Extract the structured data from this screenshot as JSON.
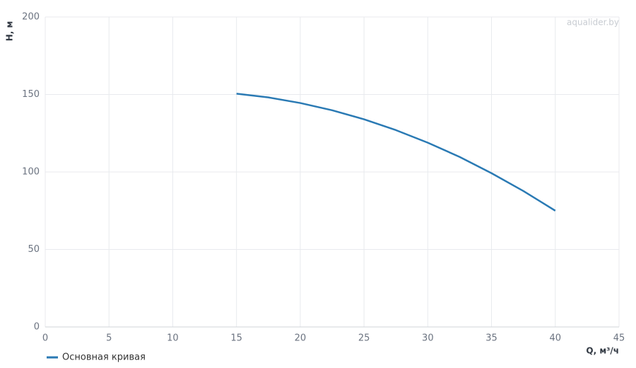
{
  "chart_data": {
    "type": "line",
    "x": [
      15,
      17.5,
      20,
      22.5,
      25,
      27.5,
      30,
      32.5,
      35,
      37.5,
      40
    ],
    "series": [
      {
        "name": "Основная кривая",
        "color": "#2a7ab4",
        "values": [
          150.5,
          148.1,
          144.5,
          139.8,
          134,
          127,
          118.9,
          109.7,
          99.2,
          87.7,
          75
        ]
      }
    ],
    "xlim": [
      0,
      45
    ],
    "xticks": [
      0,
      5,
      10,
      15,
      20,
      25,
      30,
      35,
      40,
      45
    ],
    "ylim": [
      0,
      200
    ],
    "yticks": [
      0,
      50,
      100,
      150,
      200
    ],
    "xlabel": "Q, м³/ч",
    "ylabel": "H, м",
    "watermark": "aqualider.by",
    "grid": true,
    "legend": "bottom-left"
  }
}
